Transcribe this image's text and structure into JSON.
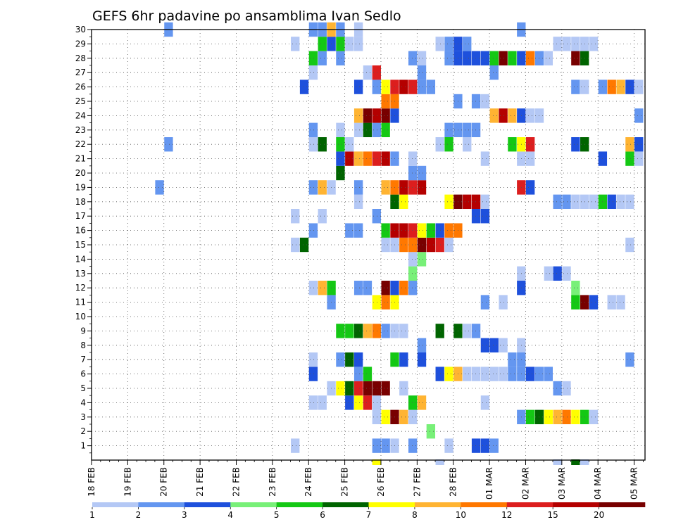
{
  "chart_data": {
    "type": "heatmap",
    "title": "GEFS 6hr padavine po ansamblima Ivan Sedlo",
    "xlabel": "",
    "ylabel": "",
    "x_tick_labels": [
      "18 FEB",
      "19 FEB",
      "20 FEB",
      "21 FEB",
      "22 FEB",
      "23 FEB",
      "24 FEB",
      "25 FEB",
      "26 FEB",
      "27 FEB",
      "28 FEB",
      "01 MAR",
      "02 MAR",
      "03 MAR",
      "04 MAR",
      "05 MAR"
    ],
    "xlim_days": [
      0,
      15.3
    ],
    "time_step_hours": 6,
    "y_members": [
      1,
      2,
      3,
      4,
      5,
      6,
      7,
      8,
      9,
      10,
      11,
      12,
      13,
      14,
      15,
      16,
      17,
      18,
      19,
      20,
      21,
      22,
      23,
      24,
      25,
      26,
      27,
      28,
      29,
      30
    ],
    "ylim": [
      0,
      30
    ],
    "grid": "dotted",
    "colorbar": {
      "position": "bottom",
      "levels": [
        1,
        2,
        3,
        4,
        5,
        6,
        7,
        8,
        10,
        12,
        15,
        20
      ],
      "colors": [
        "#b4c8f5",
        "#6496f0",
        "#1e50dc",
        "#78f078",
        "#14c814",
        "#006400",
        "#ffff00",
        "#ffb432",
        "#ff7800",
        "#dc1e1e",
        "#b40000",
        "#780000"
      ]
    },
    "cells": [
      [
        1,
        5.5,
        0
      ],
      [
        1,
        7.75,
        1
      ],
      [
        1,
        8,
        1
      ],
      [
        1,
        8.25,
        0
      ],
      [
        1,
        8.75,
        1
      ],
      [
        1,
        9.75,
        0
      ],
      [
        1,
        10.5,
        2
      ],
      [
        1,
        10.75,
        2
      ],
      [
        1,
        11,
        1
      ],
      [
        2,
        9.25,
        3
      ],
      [
        3,
        7.75,
        0
      ],
      [
        3,
        8,
        6
      ],
      [
        3,
        8.25,
        11
      ],
      [
        3,
        8.5,
        7
      ],
      [
        3,
        8.75,
        0
      ],
      [
        3,
        11.75,
        1
      ],
      [
        3,
        12,
        4
      ],
      [
        3,
        12.25,
        5
      ],
      [
        3,
        12.5,
        6
      ],
      [
        3,
        12.75,
        7
      ],
      [
        3,
        13,
        8
      ],
      [
        3,
        13.25,
        6
      ],
      [
        3,
        13.5,
        4
      ],
      [
        3,
        13.75,
        0
      ],
      [
        4,
        6,
        0
      ],
      [
        4,
        6.25,
        0
      ],
      [
        4,
        7,
        2
      ],
      [
        4,
        7.25,
        6
      ],
      [
        4,
        7.5,
        9
      ],
      [
        4,
        7.75,
        0
      ],
      [
        4,
        8.75,
        4
      ],
      [
        4,
        9,
        7
      ],
      [
        4,
        10.75,
        0
      ],
      [
        5,
        6.5,
        0
      ],
      [
        5,
        6.75,
        6
      ],
      [
        5,
        7,
        5
      ],
      [
        5,
        7.25,
        9
      ],
      [
        5,
        7.5,
        11
      ],
      [
        5,
        7.75,
        11
      ],
      [
        5,
        8,
        11
      ],
      [
        5,
        8.5,
        0
      ],
      [
        5,
        12.75,
        1
      ],
      [
        5,
        13,
        0
      ],
      [
        6,
        6,
        2
      ],
      [
        6,
        7.25,
        1
      ],
      [
        6,
        7.5,
        4
      ],
      [
        6,
        9.5,
        2
      ],
      [
        6,
        9.75,
        6
      ],
      [
        6,
        10,
        7
      ],
      [
        6,
        10.25,
        0
      ],
      [
        6,
        10.5,
        0
      ],
      [
        6,
        10.75,
        0
      ],
      [
        6,
        11,
        0
      ],
      [
        6,
        11.25,
        0
      ],
      [
        6,
        11.5,
        1
      ],
      [
        6,
        11.75,
        1
      ],
      [
        6,
        12,
        2
      ],
      [
        6,
        12.25,
        1
      ],
      [
        6,
        12.5,
        1
      ],
      [
        7,
        6,
        0
      ],
      [
        7,
        6.75,
        1
      ],
      [
        7,
        7,
        5
      ],
      [
        7,
        7.25,
        2
      ],
      [
        7,
        8.25,
        4
      ],
      [
        7,
        8.5,
        2
      ],
      [
        7,
        9,
        2
      ],
      [
        7,
        11.5,
        1
      ],
      [
        7,
        11.75,
        1
      ],
      [
        7,
        14.75,
        1
      ],
      [
        8,
        9,
        1
      ],
      [
        8,
        10.75,
        2
      ],
      [
        8,
        11,
        2
      ],
      [
        8,
        11.25,
        0
      ],
      [
        8,
        11.75,
        0
      ],
      [
        9,
        6.75,
        4
      ],
      [
        9,
        7,
        4
      ],
      [
        9,
        7.25,
        5
      ],
      [
        9,
        7.5,
        7
      ],
      [
        9,
        7.75,
        8
      ],
      [
        9,
        8,
        1
      ],
      [
        9,
        8.25,
        0
      ],
      [
        9,
        8.5,
        0
      ],
      [
        9,
        9.5,
        5
      ],
      [
        9,
        10,
        5
      ],
      [
        9,
        10.25,
        0
      ],
      [
        9,
        10.5,
        1
      ],
      [
        11,
        6.5,
        1
      ],
      [
        11,
        7.75,
        6
      ],
      [
        11,
        8,
        8
      ],
      [
        11,
        8.25,
        6
      ],
      [
        11,
        10.75,
        1
      ],
      [
        11,
        11.25,
        0
      ],
      [
        11,
        13.25,
        4
      ],
      [
        11,
        13.5,
        11
      ],
      [
        11,
        13.75,
        2
      ],
      [
        11,
        14.25,
        0
      ],
      [
        11,
        14.5,
        0
      ],
      [
        12,
        6,
        0
      ],
      [
        12,
        6.25,
        7
      ],
      [
        12,
        6.5,
        4
      ],
      [
        12,
        7.25,
        1
      ],
      [
        12,
        7.5,
        1
      ],
      [
        12,
        8,
        11
      ],
      [
        12,
        8.25,
        2
      ],
      [
        12,
        8.5,
        8
      ],
      [
        12,
        8.75,
        1
      ],
      [
        12,
        11.75,
        2
      ],
      [
        12,
        13.25,
        3
      ],
      [
        13,
        8.75,
        3
      ],
      [
        13,
        11.75,
        0
      ],
      [
        13,
        12.5,
        0
      ],
      [
        13,
        12.75,
        2
      ],
      [
        13,
        13,
        0
      ],
      [
        14,
        8.75,
        0
      ],
      [
        14,
        9,
        3
      ],
      [
        15,
        5.5,
        0
      ],
      [
        15,
        5.75,
        5
      ],
      [
        15,
        8,
        0
      ],
      [
        15,
        8.25,
        0
      ],
      [
        15,
        8.5,
        8
      ],
      [
        15,
        8.75,
        8
      ],
      [
        15,
        9,
        11
      ],
      [
        15,
        9.25,
        10
      ],
      [
        15,
        9.5,
        9
      ],
      [
        15,
        9.75,
        0
      ],
      [
        15,
        14.75,
        0
      ],
      [
        16,
        6,
        1
      ],
      [
        16,
        7,
        1
      ],
      [
        16,
        7.25,
        1
      ],
      [
        16,
        8,
        4
      ],
      [
        16,
        8.25,
        10
      ],
      [
        16,
        8.5,
        10
      ],
      [
        16,
        8.75,
        9
      ],
      [
        16,
        9,
        6
      ],
      [
        16,
        9.25,
        4
      ],
      [
        16,
        9.5,
        2
      ],
      [
        16,
        9.75,
        8
      ],
      [
        16,
        10,
        8
      ],
      [
        17,
        5.5,
        0
      ],
      [
        17,
        6.25,
        0
      ],
      [
        17,
        7.75,
        1
      ],
      [
        17,
        10.5,
        2
      ],
      [
        17,
        10.75,
        2
      ],
      [
        18,
        7.25,
        0
      ],
      [
        18,
        8.25,
        5
      ],
      [
        18,
        8.5,
        6
      ],
      [
        18,
        9.75,
        6
      ],
      [
        18,
        10,
        11
      ],
      [
        18,
        10.25,
        10
      ],
      [
        18,
        10.5,
        10
      ],
      [
        18,
        10.75,
        0
      ],
      [
        18,
        12.75,
        1
      ],
      [
        18,
        13,
        1
      ],
      [
        18,
        13.25,
        0
      ],
      [
        18,
        13.5,
        0
      ],
      [
        18,
        13.75,
        0
      ],
      [
        18,
        14,
        4
      ],
      [
        18,
        14.25,
        2
      ],
      [
        18,
        14.5,
        0
      ],
      [
        18,
        14.75,
        0
      ],
      [
        19,
        1.75,
        1
      ],
      [
        19,
        6,
        1
      ],
      [
        19,
        6.25,
        7
      ],
      [
        19,
        6.5,
        0
      ],
      [
        19,
        7.25,
        1
      ],
      [
        19,
        8,
        7
      ],
      [
        19,
        8.25,
        8
      ],
      [
        19,
        8.5,
        10
      ],
      [
        19,
        8.75,
        9
      ],
      [
        19,
        9,
        10
      ],
      [
        19,
        11.75,
        9
      ],
      [
        19,
        12,
        2
      ],
      [
        20,
        6.75,
        5
      ],
      [
        20,
        8.75,
        1
      ],
      [
        20,
        9,
        1
      ],
      [
        21,
        6.75,
        2
      ],
      [
        21,
        7,
        10
      ],
      [
        21,
        7.25,
        7
      ],
      [
        21,
        7.5,
        8
      ],
      [
        21,
        7.75,
        9
      ],
      [
        21,
        8,
        10
      ],
      [
        21,
        8.25,
        1
      ],
      [
        21,
        8.75,
        0
      ],
      [
        21,
        10.75,
        0
      ],
      [
        21,
        11.75,
        0
      ],
      [
        21,
        12,
        0
      ],
      [
        21,
        14,
        2
      ],
      [
        21,
        14.75,
        4
      ],
      [
        21,
        15,
        0
      ],
      [
        22,
        2,
        1
      ],
      [
        22,
        6,
        0
      ],
      [
        22,
        6.25,
        5
      ],
      [
        22,
        6.75,
        4
      ],
      [
        22,
        7,
        0
      ],
      [
        22,
        9.5,
        0
      ],
      [
        22,
        9.75,
        4
      ],
      [
        22,
        10.25,
        0
      ],
      [
        22,
        11.5,
        4
      ],
      [
        22,
        11.75,
        6
      ],
      [
        22,
        12,
        9
      ],
      [
        22,
        13.25,
        2
      ],
      [
        22,
        13.5,
        5
      ],
      [
        22,
        14.75,
        7
      ],
      [
        22,
        15,
        2
      ],
      [
        23,
        6,
        1
      ],
      [
        23,
        6.75,
        0
      ],
      [
        23,
        7.25,
        0
      ],
      [
        23,
        7.5,
        5
      ],
      [
        23,
        7.75,
        1
      ],
      [
        23,
        8,
        4
      ],
      [
        23,
        9.75,
        1
      ],
      [
        23,
        10,
        1
      ],
      [
        23,
        10.25,
        1
      ],
      [
        23,
        10.5,
        1
      ],
      [
        24,
        7.25,
        7
      ],
      [
        24,
        7.5,
        11
      ],
      [
        24,
        7.75,
        10
      ],
      [
        24,
        8,
        11
      ],
      [
        24,
        8.25,
        2
      ],
      [
        24,
        11,
        7
      ],
      [
        24,
        11.25,
        10
      ],
      [
        24,
        11.5,
        7
      ],
      [
        24,
        11.75,
        2
      ],
      [
        24,
        12,
        0
      ],
      [
        24,
        12.25,
        0
      ],
      [
        24,
        15,
        1
      ],
      [
        25,
        8,
        8
      ],
      [
        25,
        8.25,
        8
      ],
      [
        25,
        10,
        1
      ],
      [
        25,
        10.5,
        1
      ],
      [
        25,
        10.75,
        0
      ],
      [
        26,
        5.75,
        2
      ],
      [
        26,
        7.25,
        2
      ],
      [
        26,
        7.75,
        1
      ],
      [
        26,
        8,
        6
      ],
      [
        26,
        8.25,
        9
      ],
      [
        26,
        8.5,
        10
      ],
      [
        26,
        8.75,
        9
      ],
      [
        26,
        9,
        1
      ],
      [
        26,
        9.25,
        1
      ],
      [
        26,
        13.25,
        1
      ],
      [
        26,
        13.5,
        0
      ],
      [
        26,
        14,
        1
      ],
      [
        26,
        14.25,
        8
      ],
      [
        26,
        14.5,
        7
      ],
      [
        26,
        14.75,
        2
      ],
      [
        26,
        15,
        0
      ],
      [
        27,
        6,
        0
      ],
      [
        27,
        7.5,
        0
      ],
      [
        27,
        7.75,
        9
      ],
      [
        27,
        9,
        1
      ],
      [
        27,
        11,
        1
      ],
      [
        28,
        6,
        4
      ],
      [
        28,
        6.25,
        1
      ],
      [
        28,
        6.75,
        1
      ],
      [
        28,
        8.75,
        1
      ],
      [
        28,
        9,
        0
      ],
      [
        28,
        9.75,
        1
      ],
      [
        28,
        10,
        2
      ],
      [
        28,
        10.25,
        2
      ],
      [
        28,
        10.5,
        2
      ],
      [
        28,
        10.75,
        2
      ],
      [
        28,
        11,
        4
      ],
      [
        28,
        11.25,
        11
      ],
      [
        28,
        11.5,
        4
      ],
      [
        28,
        11.75,
        2
      ],
      [
        28,
        12,
        8
      ],
      [
        28,
        12.25,
        1
      ],
      [
        28,
        12.5,
        0
      ],
      [
        28,
        13.25,
        11
      ],
      [
        28,
        13.5,
        5
      ],
      [
        29,
        5.5,
        0
      ],
      [
        29,
        6.25,
        4
      ],
      [
        29,
        6.5,
        2
      ],
      [
        29,
        6.75,
        4
      ],
      [
        29,
        7,
        0
      ],
      [
        29,
        7.25,
        0
      ],
      [
        29,
        9.5,
        0
      ],
      [
        29,
        9.75,
        1
      ],
      [
        29,
        10,
        2
      ],
      [
        29,
        10.25,
        1
      ],
      [
        29,
        12.75,
        0
      ],
      [
        29,
        13,
        0
      ],
      [
        29,
        13.25,
        0
      ],
      [
        29,
        13.5,
        0
      ],
      [
        29,
        13.75,
        0
      ],
      [
        30,
        2,
        1
      ],
      [
        30,
        6,
        1
      ],
      [
        30,
        6.25,
        1
      ],
      [
        30,
        6.5,
        7
      ],
      [
        30,
        6.75,
        1
      ],
      [
        30,
        7.25,
        0
      ],
      [
        30,
        11.75,
        1
      ]
    ],
    "cells_format": "[member, day_offset_from_18FEB, color_index]",
    "below_axis_marks": [
      [
        7.75,
        6
      ],
      [
        9.5,
        0
      ],
      [
        12.75,
        0
      ],
      [
        13.25,
        5
      ],
      [
        13.5,
        0
      ]
    ]
  }
}
